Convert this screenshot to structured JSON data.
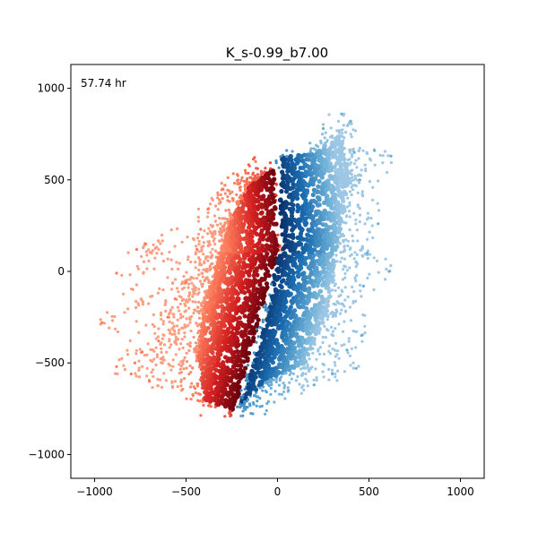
{
  "chart_data": {
    "type": "scatter",
    "title": "K_s-0.99_b7.00",
    "annotation": "57.74 hr",
    "xlabel": "",
    "ylabel": "",
    "xlim": [
      -1130,
      1130
    ],
    "ylim": [
      -1130,
      1130
    ],
    "xticks": [
      -1000,
      -500,
      0,
      500,
      1000
    ],
    "xtick_labels": [
      "−1000",
      "−500",
      "0",
      "500",
      "1000"
    ],
    "yticks": [
      -1000,
      -500,
      0,
      500,
      1000
    ],
    "ytick_labels": [
      "−1000",
      "−500",
      "0",
      "500",
      "1000"
    ],
    "grid": false,
    "legend": "none",
    "colormaps": {
      "red_series": "Reds",
      "blue_series": "Blues"
    },
    "colors": {
      "red_dark": "#67000d",
      "red_mid": "#d42020",
      "red_light": "#fb7a5a",
      "red_pale": "#fcbba1",
      "blue_dark": "#08306b",
      "blue_mid": "#1a6cb0",
      "blue_light": "#6baed6",
      "blue_pale": "#c6dbef"
    },
    "series": [
      {
        "color_group": "red",
        "side": "x below boundary curve",
        "x_range": [
          -960,
          0
        ],
        "y_range": [
          -800,
          620
        ],
        "core_outline": [
          [
            -400,
            -700
          ],
          [
            -250,
            -760
          ],
          [
            -150,
            -620
          ],
          [
            -50,
            -250
          ],
          [
            0,
            100
          ],
          [
            -20,
            560
          ],
          [
            -150,
            480
          ],
          [
            -260,
            260
          ],
          [
            -330,
            50
          ],
          [
            -400,
            -200
          ],
          [
            -430,
            -450
          ]
        ],
        "outer_points": [
          [
            -960,
            -280
          ],
          [
            -880,
            -520
          ],
          [
            -800,
            -560
          ],
          [
            -780,
            -500
          ],
          [
            -740,
            -440
          ],
          [
            -700,
            -600
          ],
          [
            -650,
            -380
          ],
          [
            -600,
            -250
          ],
          [
            -560,
            -150
          ],
          [
            -500,
            -60
          ],
          [
            -440,
            120
          ],
          [
            -420,
            230
          ],
          [
            -380,
            340
          ],
          [
            -300,
            450
          ],
          [
            -220,
            530
          ],
          [
            -120,
            600
          ],
          [
            -770,
            120
          ],
          [
            -880,
            -10
          ],
          [
            -720,
            150
          ]
        ]
      },
      {
        "color_group": "blue",
        "side": "x above boundary curve",
        "x_range": [
          -250,
          620
        ],
        "y_range": [
          -820,
          860
        ],
        "core_outline": [
          [
            -200,
            -720
          ],
          [
            -60,
            -600
          ],
          [
            150,
            -500
          ],
          [
            270,
            -230
          ],
          [
            330,
            150
          ],
          [
            390,
            520
          ],
          [
            340,
            740
          ],
          [
            200,
            650
          ],
          [
            20,
            620
          ],
          [
            10,
            300
          ],
          [
            -40,
            -200
          ],
          [
            -160,
            -600
          ]
        ],
        "outer_points": [
          [
            -200,
            -790
          ],
          [
            -60,
            -760
          ],
          [
            60,
            -650
          ],
          [
            200,
            -620
          ],
          [
            300,
            -560
          ],
          [
            430,
            -530
          ],
          [
            380,
            -430
          ],
          [
            460,
            -350
          ],
          [
            470,
            -80
          ],
          [
            490,
            100
          ],
          [
            550,
            260
          ],
          [
            450,
            500
          ],
          [
            420,
            650
          ],
          [
            400,
            820
          ],
          [
            350,
            860
          ],
          [
            250,
            780
          ],
          [
            530,
            660
          ],
          [
            620,
            630
          ],
          [
            610,
            0
          ]
        ]
      }
    ]
  }
}
